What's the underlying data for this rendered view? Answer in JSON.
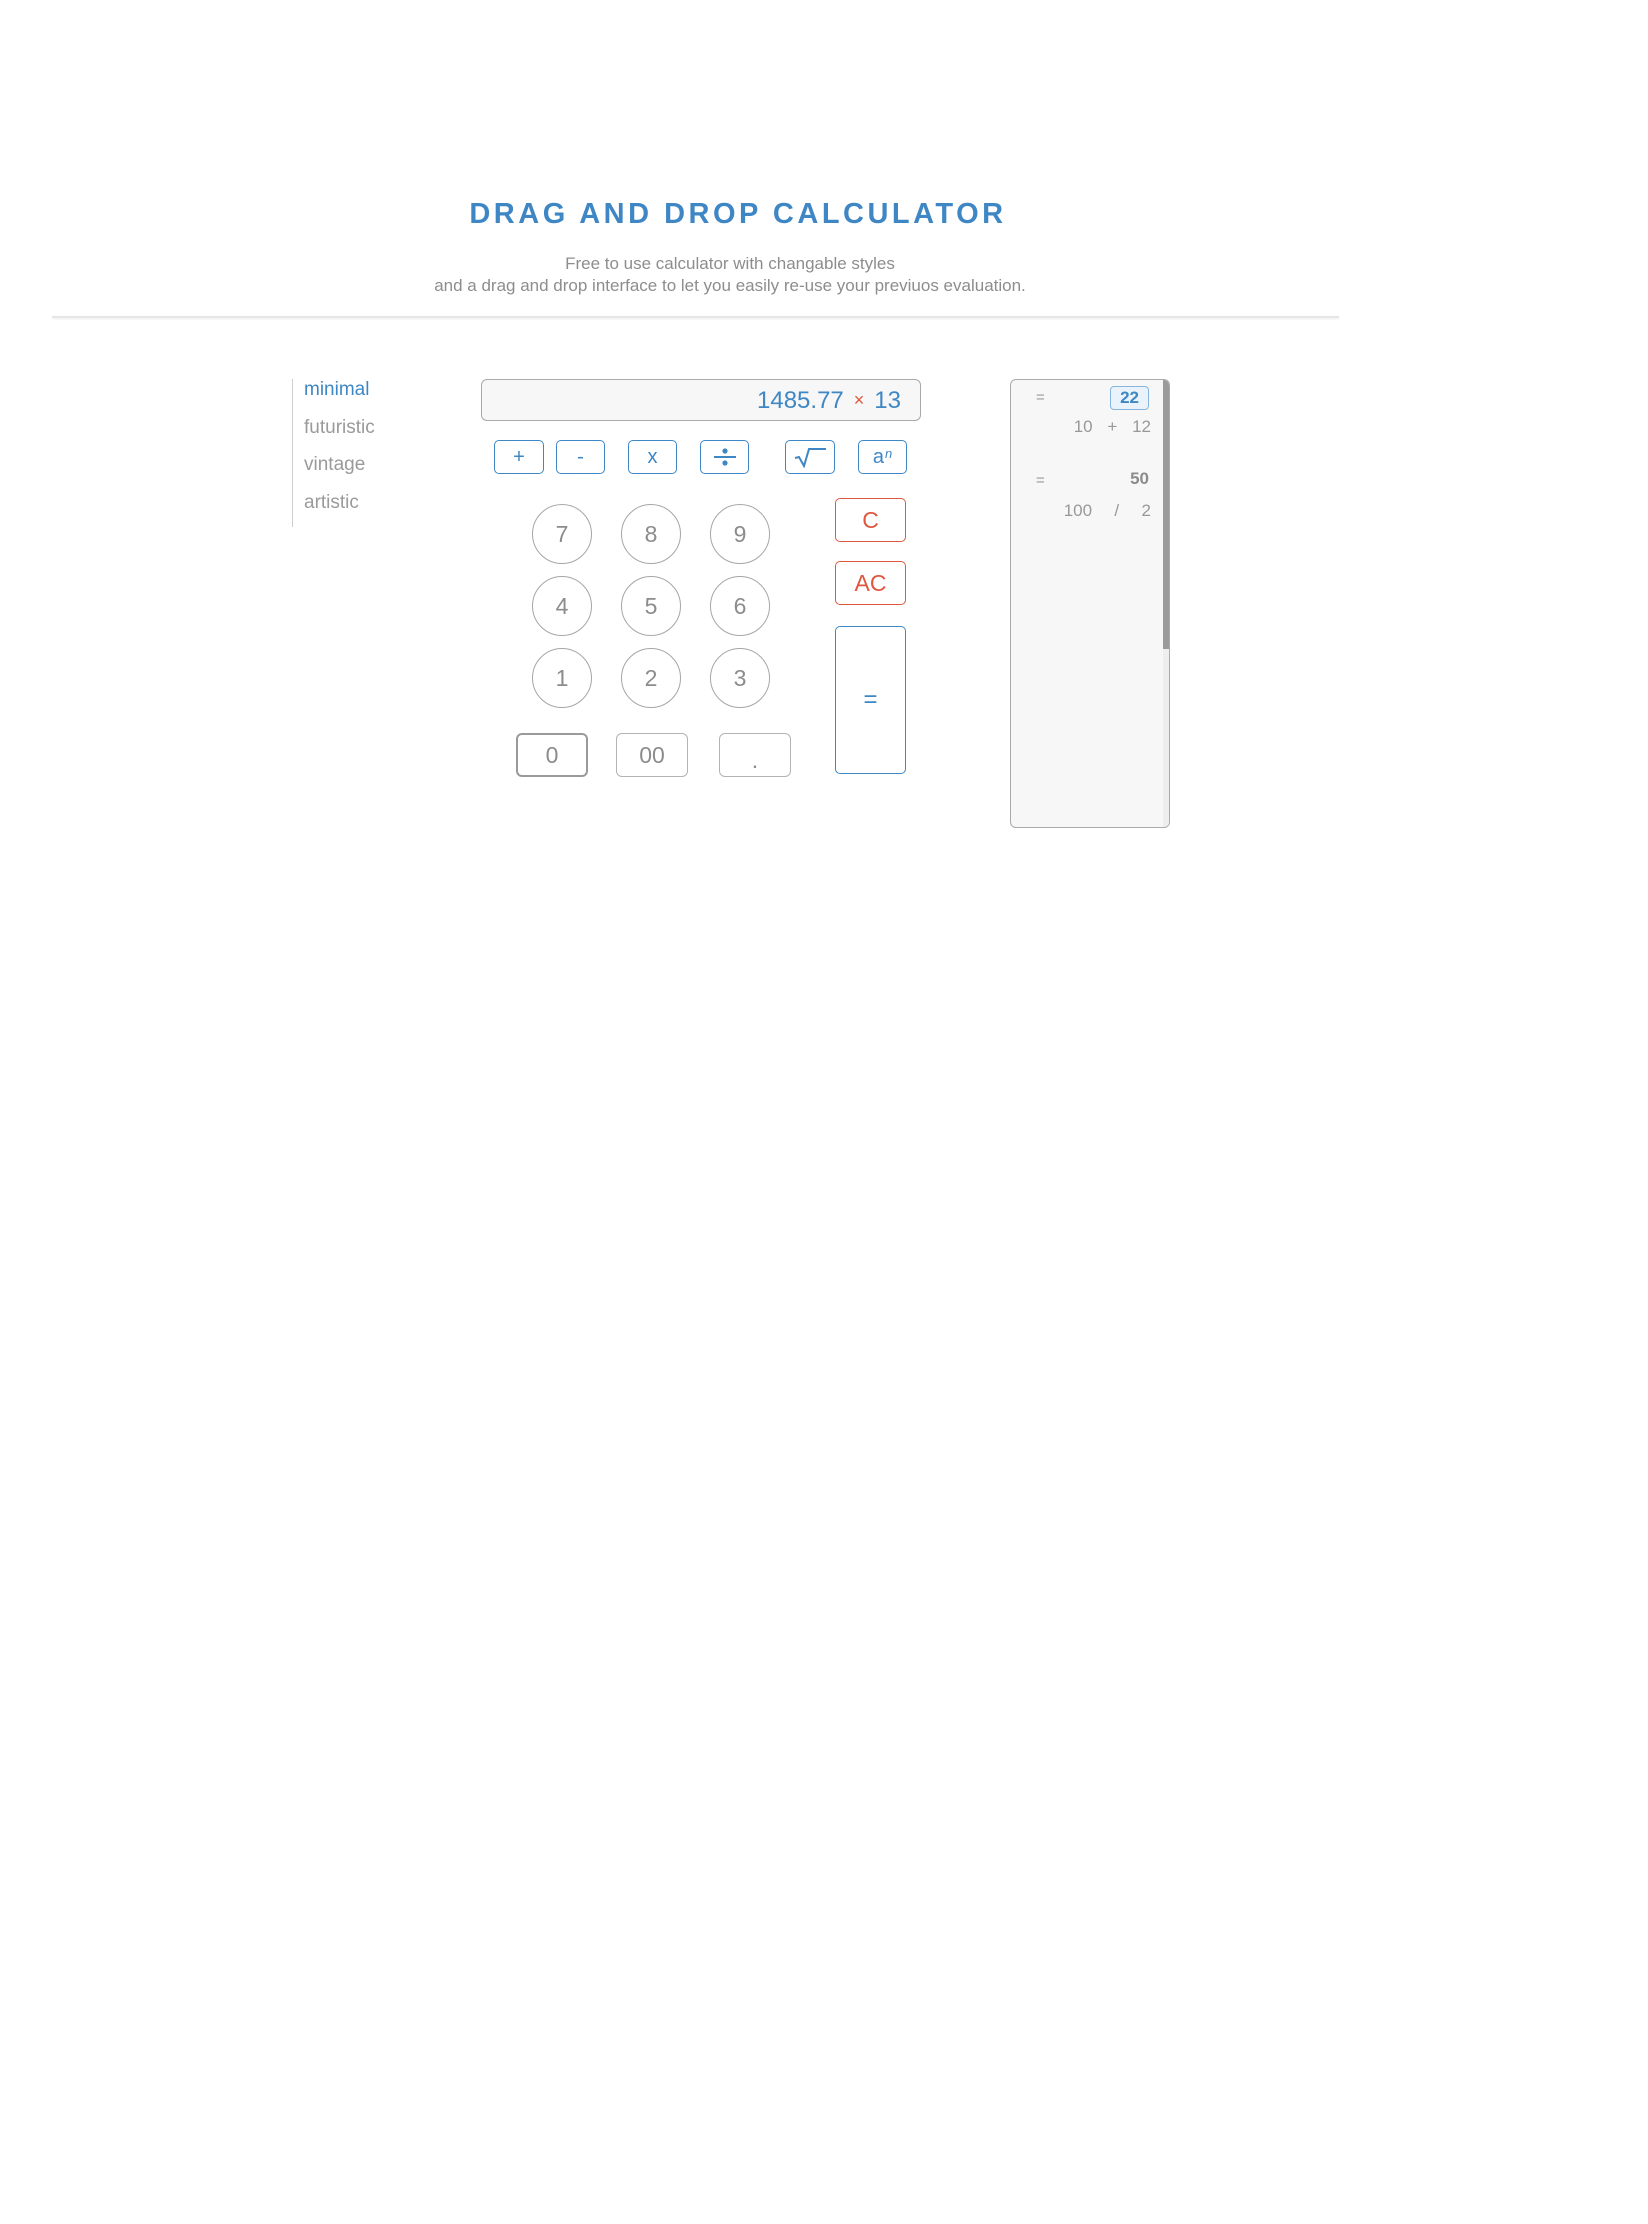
{
  "header": {
    "title": "DRAG AND DROP CALCULATOR",
    "subtitle_line1": "Free to use calculator with changable styles",
    "subtitle_line2": "and a drag and drop interface to let you easily re-use your previuos evaluation."
  },
  "styles": {
    "active": "minimal",
    "items": [
      "minimal",
      "futuristic",
      "vintage",
      "artistic"
    ]
  },
  "display": {
    "operand1": "1485.77",
    "operator": "×",
    "operand2": "13"
  },
  "operators": {
    "plus": "+",
    "minus": "-",
    "multiply": "x",
    "divide": "÷",
    "sqrt": "√",
    "power_base": "a",
    "power_exp": "n"
  },
  "digits": {
    "d7": "7",
    "d8": "8",
    "d9": "9",
    "d4": "4",
    "d5": "5",
    "d6": "6",
    "d1": "1",
    "d2": "2",
    "d3": "3",
    "d0": "0",
    "d00": "00",
    "dot": "."
  },
  "controls": {
    "clear": "C",
    "all_clear": "AC",
    "equals": "="
  },
  "history": [
    {
      "eq": "=",
      "result": "22",
      "left": "10",
      "op": "+",
      "right": "12",
      "highlighted": true
    },
    {
      "eq": "=",
      "result": "50",
      "left": "100",
      "op": "/",
      "right": "2",
      "highlighted": false
    }
  ],
  "colors": {
    "accent": "#3e87c4",
    "danger": "#e0573f",
    "muted": "#8c8c8c"
  }
}
